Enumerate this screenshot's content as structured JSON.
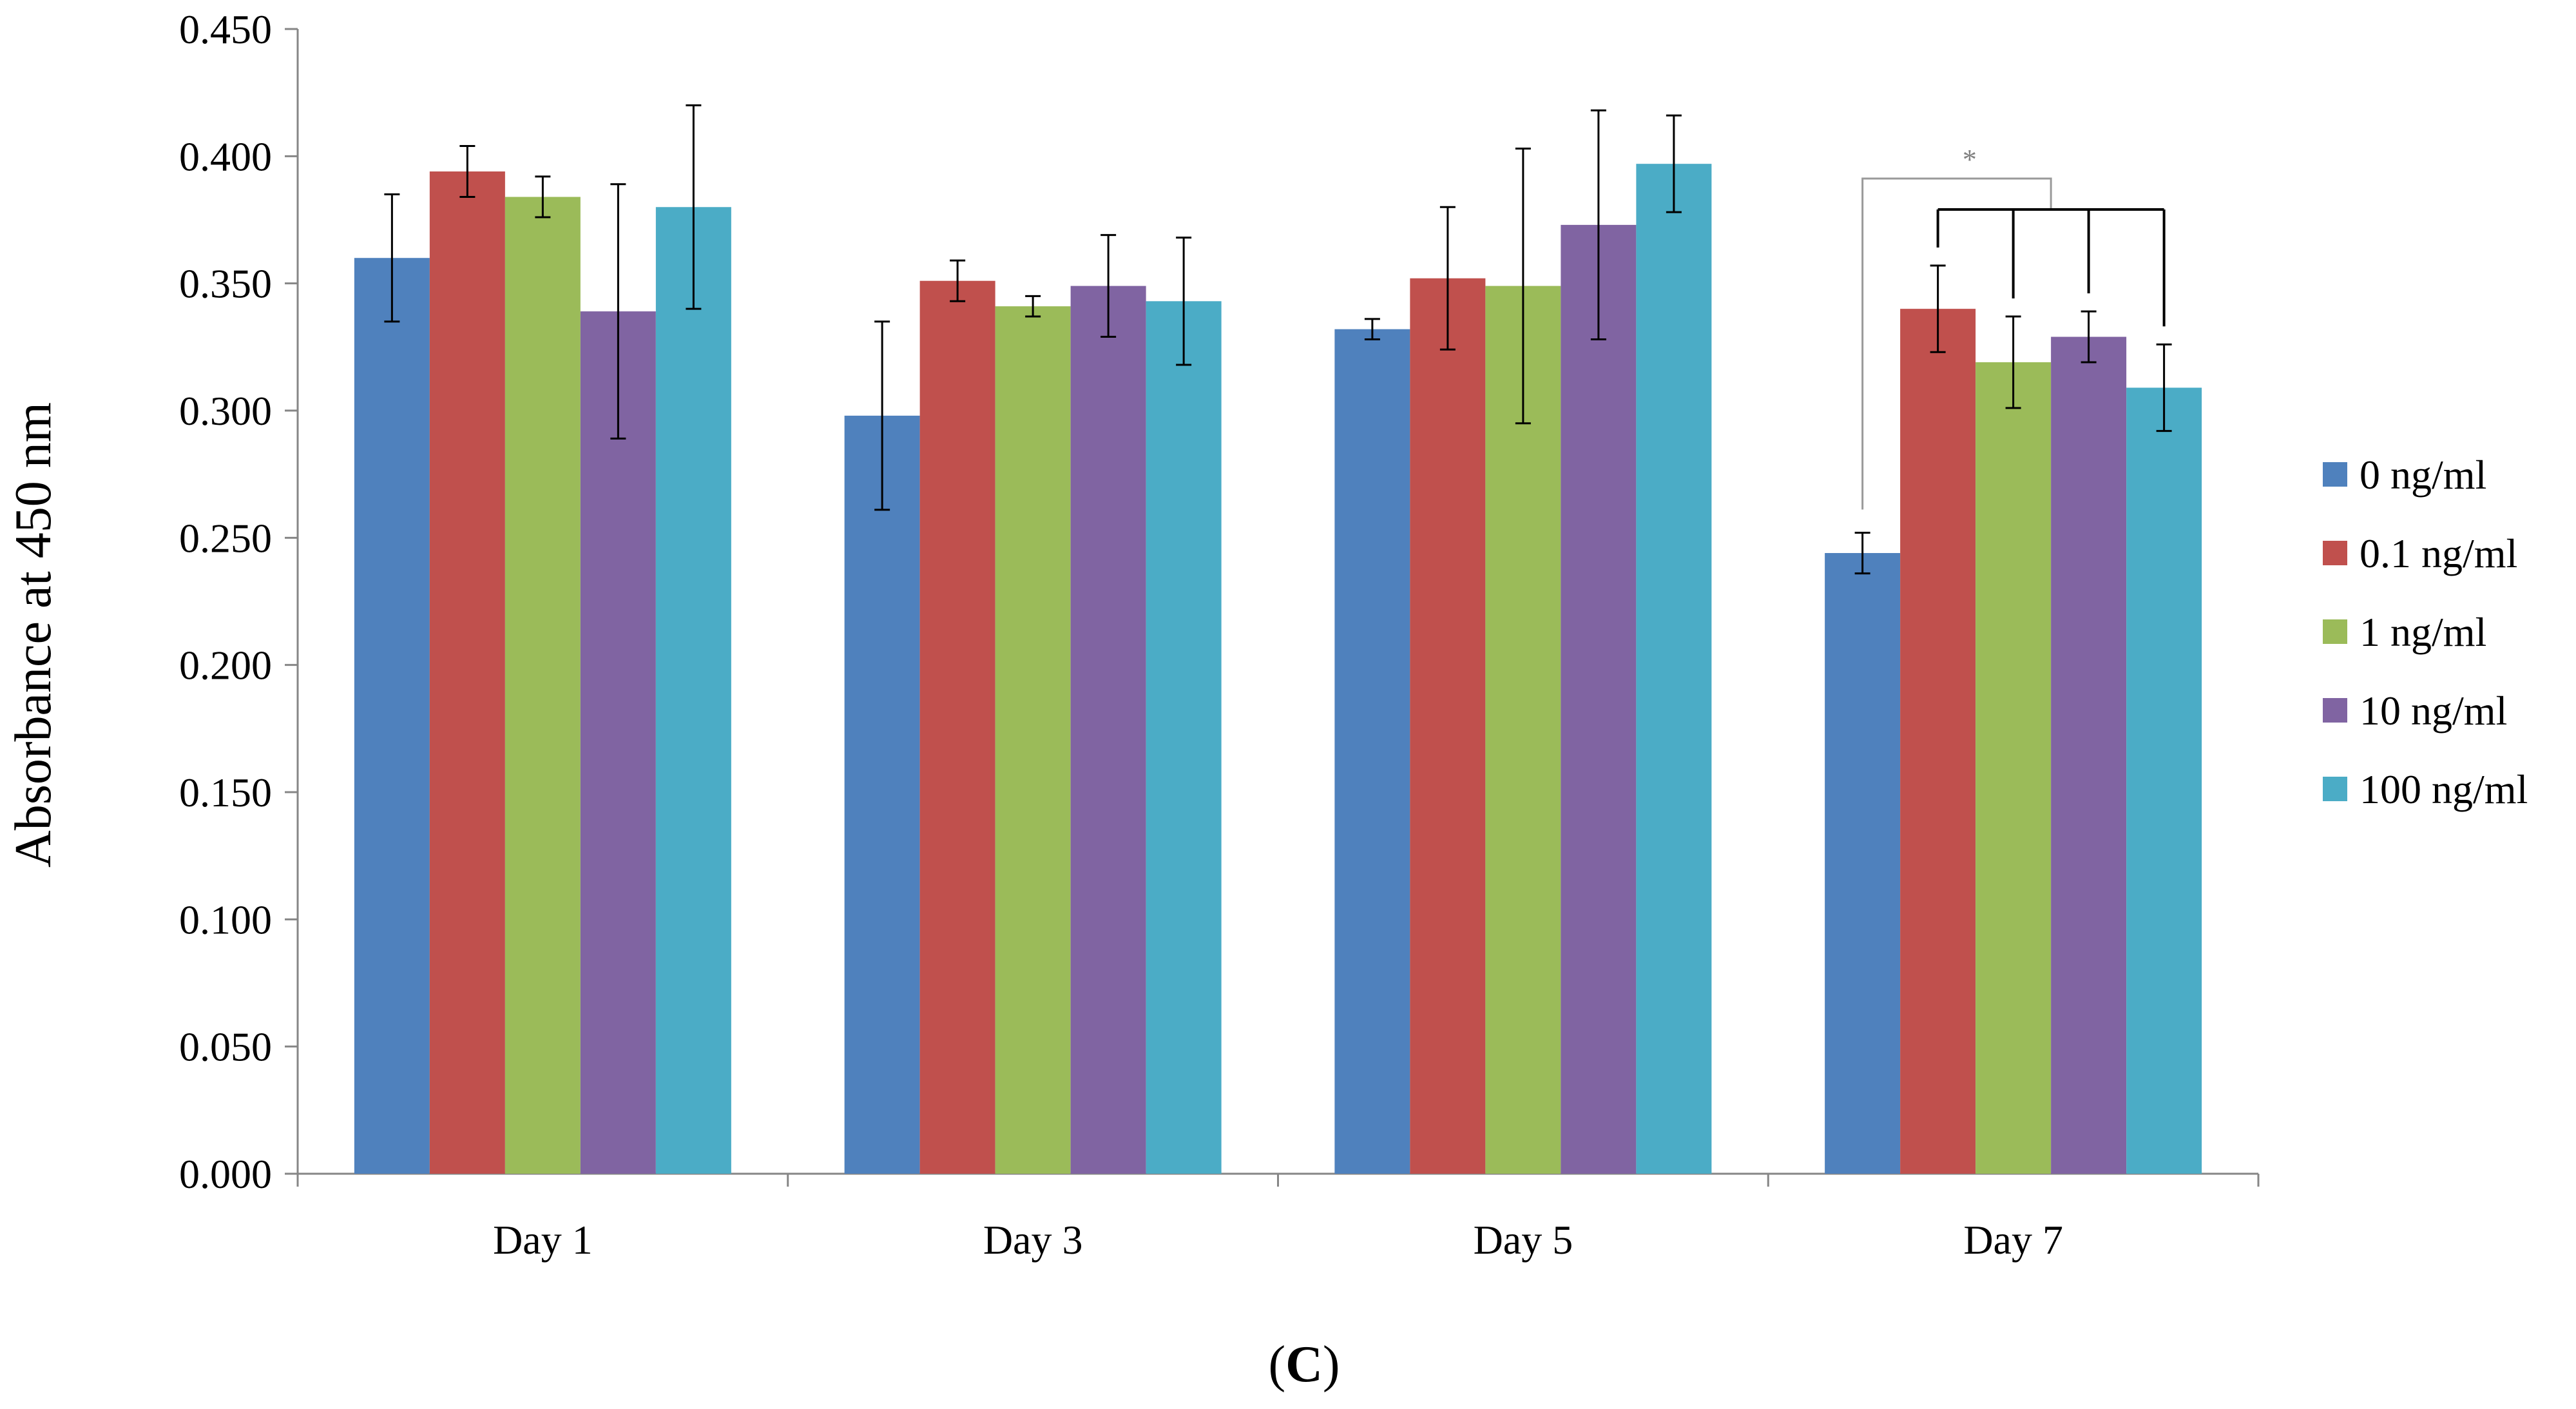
{
  "chart_data": {
    "type": "bar",
    "title": "",
    "xlabel": "",
    "ylabel": "Absorbance at 450 nm",
    "ylim": [
      0,
      0.45
    ],
    "yticks": [
      "0.000",
      "0.050",
      "0.100",
      "0.150",
      "0.200",
      "0.250",
      "0.300",
      "0.350",
      "0.400",
      "0.450"
    ],
    "categories": [
      "Day 1",
      "Day 3",
      "Day 5",
      "Day 7"
    ],
    "legend_position": "right",
    "series": [
      {
        "name": "0 ng/ml",
        "color": "#4F81BD",
        "values": [
          0.36,
          0.298,
          0.332,
          0.244
        ],
        "errors": [
          0.025,
          0.037,
          0.004,
          0.008
        ]
      },
      {
        "name": "0.1 ng/ml",
        "color": "#C0504D",
        "values": [
          0.394,
          0.351,
          0.352,
          0.34
        ],
        "errors": [
          0.01,
          0.008,
          0.028,
          0.017
        ]
      },
      {
        "name": "1 ng/ml",
        "color": "#9BBB59",
        "values": [
          0.384,
          0.341,
          0.349,
          0.319
        ],
        "errors": [
          0.008,
          0.004,
          0.054,
          0.018
        ]
      },
      {
        "name": "10 ng/ml",
        "color": "#8064A2",
        "values": [
          0.339,
          0.349,
          0.373,
          0.329
        ],
        "errors": [
          0.05,
          0.02,
          0.045,
          0.01
        ]
      },
      {
        "name": "100 ng/ml",
        "color": "#4BACC6",
        "values": [
          0.38,
          0.343,
          0.397,
          0.309
        ],
        "errors": [
          0.04,
          0.025,
          0.019,
          0.017
        ]
      }
    ],
    "annotations": [
      {
        "text": "*",
        "category": "Day 7",
        "description": "0 ng/ml vs. all other concentrations"
      }
    ]
  },
  "figure": {
    "panel_label_open": "(",
    "panel_label_letter": "C",
    "panel_label_close": ")"
  }
}
